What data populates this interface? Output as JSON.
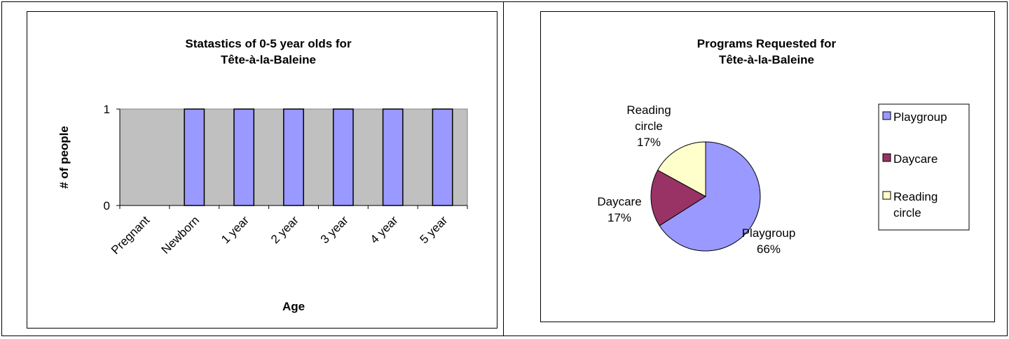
{
  "charts": [
    {
      "chart_data": {
        "type": "bar",
        "title_lines": [
          "Statastics of 0-5 year olds for",
          "Tête-à-la-Baleine"
        ],
        "xlabel": "Age",
        "ylabel": "# of people",
        "categories": [
          "Pregnant",
          "Newborn",
          "1 year",
          "2 year",
          "3 year",
          "4 year",
          "5 year"
        ],
        "values": [
          0,
          1,
          1,
          1,
          1,
          1,
          1
        ],
        "ylim": [
          0,
          1
        ],
        "yticks": [
          "0",
          "1"
        ],
        "grid": false,
        "legend": "none",
        "plot_background": "#c0c0c0",
        "bar_color": "#9999ff"
      }
    },
    {
      "chart_data": {
        "type": "pie",
        "title_lines": [
          "Programs Requested for",
          "Tête-à-la-Baleine"
        ],
        "slices": [
          {
            "label": "Playgroup",
            "value": 66,
            "color": "#9999ff",
            "label_lines": [
              "Playgroup",
              "66%"
            ]
          },
          {
            "label": "Daycare",
            "value": 17,
            "color": "#993366",
            "label_lines": [
              "Daycare",
              "17%"
            ]
          },
          {
            "label": "Reading circle",
            "value": 17,
            "color": "#ffffcc",
            "label_lines": [
              "Reading",
              "circle",
              "17%"
            ]
          }
        ],
        "legend": "right",
        "legend_items": [
          {
            "lines": [
              "Playgroup"
            ],
            "color": "#9999ff"
          },
          {
            "lines": [
              "Daycare"
            ],
            "color": "#993366"
          },
          {
            "lines": [
              "Reading",
              "circle"
            ],
            "color": "#ffffcc"
          }
        ]
      }
    }
  ]
}
